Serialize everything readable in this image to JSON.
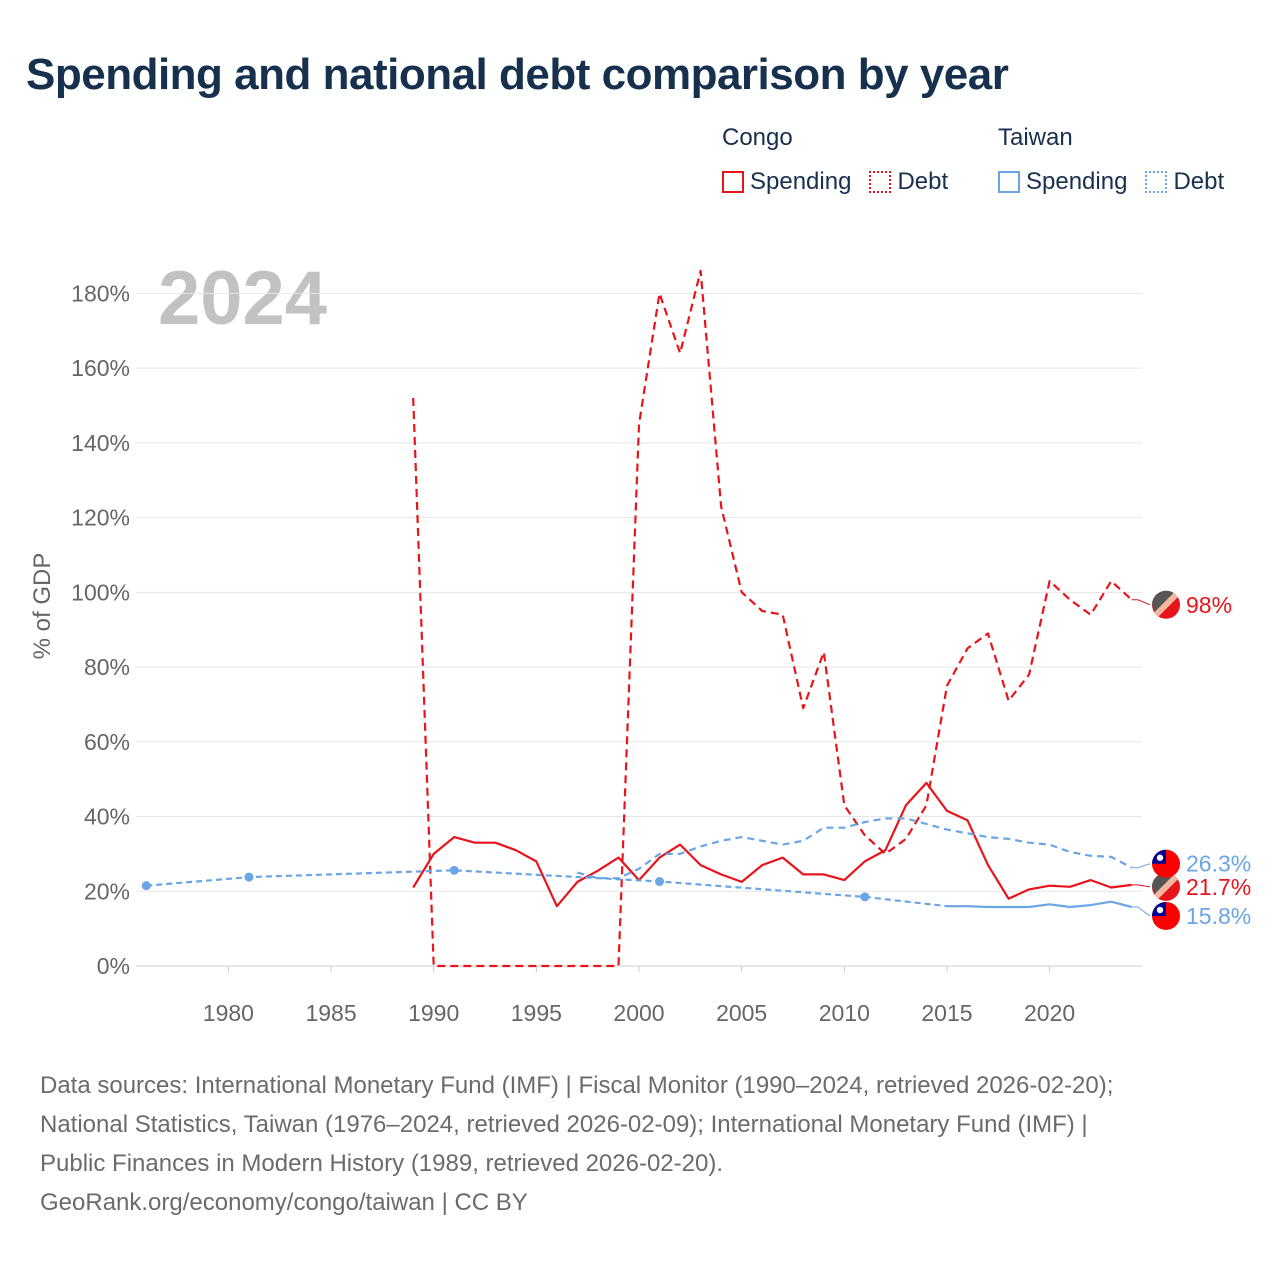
{
  "title": "Spending and national debt comparison by year",
  "legend": {
    "groups": [
      {
        "name": "Congo",
        "items": [
          {
            "label": "Spending",
            "style": "solid",
            "color": "#e8141b"
          },
          {
            "label": "Debt",
            "style": "dotted",
            "color": "#e8141b"
          }
        ]
      },
      {
        "name": "Taiwan",
        "items": [
          {
            "label": "Spending",
            "style": "solid",
            "color": "#6aa5e6"
          },
          {
            "label": "Debt",
            "style": "dotted",
            "color": "#6aa5e6"
          }
        ]
      }
    ]
  },
  "source": {
    "line1": "Data sources: International Monetary Fund (IMF) | Fiscal Monitor (1990–2024, retrieved 2026-02-20);",
    "line2": "National Statistics, Taiwan (1976–2024, retrieved 2026-02-09); International Monetary Fund (IMF) |",
    "line3": "Public Finances in Modern History (1989, retrieved 2026-02-20).",
    "line4": "GeoRank.org/economy/congo/taiwan | CC BY"
  },
  "colors": {
    "congo": "#e8141b",
    "taiwan": "#6aa5e6",
    "grid": "#e6e6e6",
    "axis_text": "#666666",
    "watermark": "#c2c2c2"
  },
  "chart_data": {
    "type": "line",
    "title": "Spending and national debt comparison by year",
    "year_label": "2024",
    "ylabel": "% of GDP",
    "xlabel": "",
    "xlim": [
      1975.5,
      2024.5
    ],
    "ylim": [
      0,
      190
    ],
    "x_ticks": [
      1980,
      1985,
      1990,
      1995,
      2000,
      2005,
      2010,
      2015,
      2020
    ],
    "y_ticks": [
      0,
      20,
      40,
      60,
      80,
      100,
      120,
      140,
      160,
      180
    ],
    "grid": true,
    "series": [
      {
        "name": "Congo Debt",
        "country": "Congo",
        "metric": "Debt",
        "color": "#e8141b",
        "dash": "8,5",
        "x": [
          1989,
          1990,
          1991,
          1992,
          1993,
          1994,
          1995,
          1996,
          1997,
          1998,
          1999,
          2000,
          2001,
          2002,
          2003,
          2004,
          2005,
          2006,
          2007,
          2008,
          2009,
          2010,
          2011,
          2012,
          2013,
          2014,
          2015,
          2016,
          2017,
          2018,
          2019,
          2020,
          2021,
          2022,
          2023,
          2024
        ],
        "values": [
          152,
          0,
          0,
          0,
          0,
          0,
          0,
          0,
          0,
          0,
          0,
          145,
          180,
          164,
          186,
          123,
          100,
          95,
          94,
          69,
          84,
          43,
          35,
          30,
          34,
          43,
          75,
          85,
          89,
          71,
          78,
          103,
          98,
          94,
          103,
          98
        ],
        "end_label": "98%",
        "end_value": 98
      },
      {
        "name": "Congo Spending",
        "country": "Congo",
        "metric": "Spending",
        "color": "#e8141b",
        "dash": "",
        "x": [
          1989,
          1990,
          1991,
          1992,
          1993,
          1994,
          1995,
          1996,
          1997,
          1998,
          1999,
          2000,
          2001,
          2002,
          2003,
          2004,
          2005,
          2006,
          2007,
          2008,
          2009,
          2010,
          2011,
          2012,
          2013,
          2014,
          2015,
          2016,
          2017,
          2018,
          2019,
          2020,
          2021,
          2022,
          2023,
          2024
        ],
        "values": [
          21,
          30,
          34.5,
          33,
          33,
          31,
          28,
          16,
          22.5,
          25.5,
          29,
          23,
          29,
          32.5,
          27,
          24.5,
          22.5,
          27,
          29,
          24.5,
          24.5,
          23,
          28,
          31,
          43,
          49,
          41.5,
          39,
          27,
          18,
          20.5,
          21.5,
          21.2,
          23,
          21,
          21.7
        ],
        "end_label": "21.7%",
        "end_value": 21.7
      },
      {
        "name": "Taiwan Debt",
        "country": "Taiwan",
        "metric": "Debt",
        "color": "#6aa5e6",
        "dash": "7,5",
        "x": [
          1997,
          1998,
          1999,
          2000,
          2001,
          2002,
          2003,
          2004,
          2005,
          2006,
          2007,
          2008,
          2009,
          2010,
          2011,
          2012,
          2013,
          2014,
          2015,
          2016,
          2017,
          2018,
          2019,
          2020,
          2021,
          2022,
          2023,
          2024
        ],
        "values": [
          25,
          23.5,
          23.5,
          26,
          30,
          30,
          32,
          33.5,
          34.5,
          33.5,
          32.5,
          33.5,
          37,
          37,
          38.5,
          39.5,
          39.5,
          38,
          36.5,
          35.5,
          34.5,
          34,
          33,
          32.5,
          30.5,
          29.5,
          29.2,
          26.3
        ],
        "end_label": "26.3%",
        "end_value": 26.3
      },
      {
        "name": "Taiwan Spending (interpolated)",
        "country": "Taiwan",
        "metric": "Spending",
        "color": "#6aa5e6",
        "dash": "6,4",
        "x": [
          1976,
          1981,
          1991,
          2001,
          2011,
          2015
        ],
        "values": [
          21.5,
          23.8,
          25.6,
          22.6,
          18.5,
          16
        ],
        "markers": [
          1976,
          1981,
          1991,
          2001,
          2011
        ]
      },
      {
        "name": "Taiwan Spending",
        "country": "Taiwan",
        "metric": "Spending",
        "color": "#6aa5e6",
        "dash": "",
        "x": [
          2015,
          2016,
          2017,
          2018,
          2019,
          2020,
          2021,
          2022,
          2023,
          2024
        ],
        "values": [
          16,
          16,
          15.8,
          15.8,
          15.8,
          16.5,
          15.8,
          16.3,
          17.2,
          15.8
        ],
        "end_label": "15.8%",
        "end_value": 15.8
      }
    ]
  }
}
